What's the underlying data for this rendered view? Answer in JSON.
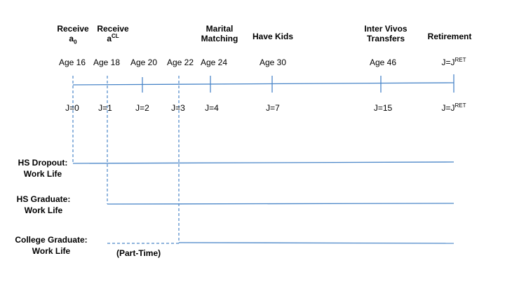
{
  "events": [
    {
      "line1": "Receive",
      "line2_base": "a",
      "line2_sub": "0",
      "line2_sup": ""
    },
    {
      "line1": "Receive",
      "line2_base": "a",
      "line2_sub": "",
      "line2_sup": "CL"
    },
    {
      "line1": "Marital",
      "line2_base": "Matching",
      "line2_sub": "",
      "line2_sup": ""
    },
    {
      "line1": "Have Kids",
      "line2_base": "",
      "line2_sub": "",
      "line2_sup": ""
    },
    {
      "line1": "Inter Vivos",
      "line2_base": "Transfers",
      "line2_sub": "",
      "line2_sup": ""
    },
    {
      "line1": "Retirement",
      "line2_base": "",
      "line2_sub": "",
      "line2_sup": ""
    }
  ],
  "ages": [
    "Age 16",
    "Age 18",
    "Age 20",
    "Age 22",
    "Age 24",
    "Age 30",
    "Age 46"
  ],
  "age_retire": {
    "base": "J=J",
    "sup": "RET"
  },
  "j_labels": [
    "J=0",
    "J=1",
    "J=2",
    "J=3",
    "J=4",
    "J=7",
    "J=15"
  ],
  "j_retire": {
    "base": "J=J",
    "sup": "RET"
  },
  "work_lives": [
    {
      "line1": "HS Dropout:",
      "line2": "Work Life"
    },
    {
      "line1": "HS Graduate:",
      "line2": "Work Life"
    },
    {
      "line1": "College Graduate:",
      "line2": "Work Life"
    }
  ],
  "part_time": "(Part-Time)",
  "colors": {
    "line": "#4a86c8",
    "text": "#000000"
  }
}
